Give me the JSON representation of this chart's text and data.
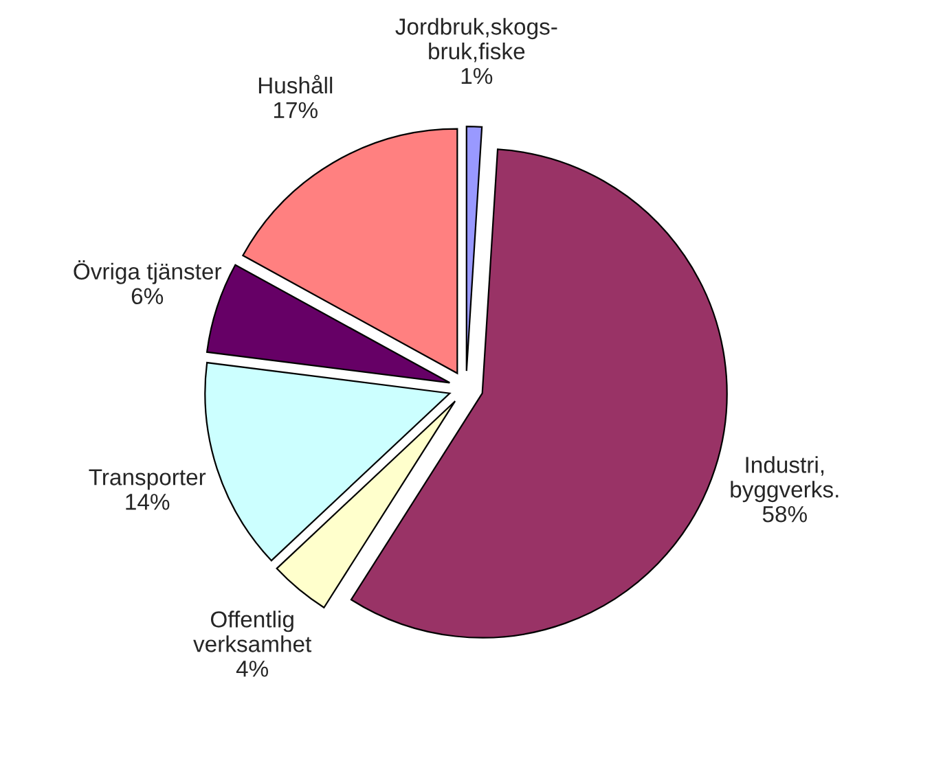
{
  "chart_data": {
    "type": "pie",
    "categories": [
      "Jordbruk,skogs-\nbruk,fiske",
      "Industri,\nbyggverks.",
      "Offentlig\nverksamhet",
      "Transporter",
      "Övriga tjänster",
      "Hushåll"
    ],
    "values": [
      1,
      58,
      4,
      14,
      6,
      17
    ],
    "value_labels": [
      "1%",
      "58%",
      "4%",
      "14%",
      "6%",
      "17%"
    ],
    "colors": [
      "#9999ff",
      "#993366",
      "#ffffcc",
      "#ccffff",
      "#660066",
      "#ff8080"
    ]
  }
}
